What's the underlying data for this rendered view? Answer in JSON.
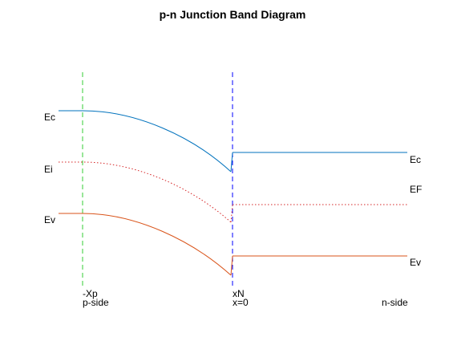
{
  "title": "p-n Junction Band Diagram",
  "left_labels": {
    "ec": "Ec",
    "ei": "Ei",
    "ev": "Ev"
  },
  "right_labels": {
    "ec": "Ec",
    "ef": "EF",
    "ev": "Ev"
  },
  "markers": {
    "minus_xp": "-Xp",
    "p_side": "p-side",
    "xn": "xN",
    "x_zero": "x=0",
    "n_side": "n-side"
  },
  "colors": {
    "conduction_band": "#0072bd",
    "intrinsic_level": "#d62728",
    "valence_band": "#d95319",
    "fermi_level": "#d62728",
    "depletion_edge_p": "#33cc33",
    "junction_line": "#0000ff",
    "text": "#000000"
  },
  "chart_data": {
    "type": "line",
    "title": "p-n Junction Band Diagram",
    "xlabel": "",
    "ylabel": "",
    "grid": false,
    "x_markers": [
      "-Xp",
      "xN"
    ],
    "series": [
      {
        "name": "Ec",
        "style": "solid",
        "color": "#0072bd"
      },
      {
        "name": "Ei",
        "style": "dotted",
        "color": "#d62728"
      },
      {
        "name": "Ev",
        "style": "solid",
        "color": "#d95319"
      },
      {
        "name": "EF",
        "style": "dotted",
        "color": "#d62728"
      }
    ]
  }
}
